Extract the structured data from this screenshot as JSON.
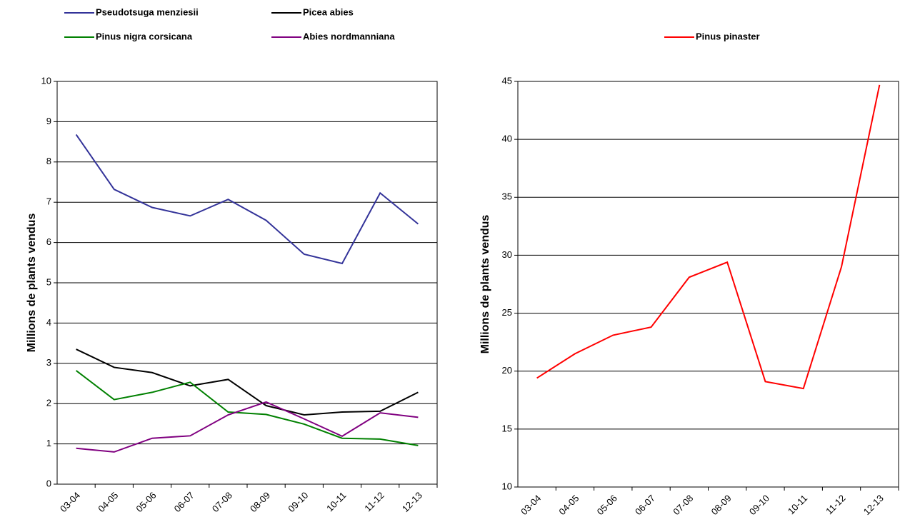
{
  "chart_data": [
    {
      "type": "line",
      "y_label": "Millions de plants vendus",
      "categories": [
        "03-04",
        "04-05",
        "05-06",
        "06-07",
        "07-08",
        "08-09",
        "09-10",
        "10-11",
        "11-12",
        "12-13"
      ],
      "series": [
        {
          "name": "Pseudotsuga menziesii",
          "color": "#333399",
          "values": [
            8.68,
            7.32,
            6.87,
            6.66,
            7.07,
            6.55,
            5.71,
            5.48,
            7.23,
            6.46
          ]
        },
        {
          "name": "Picea abies",
          "color": "#000000",
          "values": [
            3.35,
            2.9,
            2.77,
            2.44,
            2.6,
            1.95,
            1.72,
            1.79,
            1.81,
            2.28
          ]
        },
        {
          "name": "Pinus nigra corsicana",
          "color": "#008000",
          "values": [
            2.82,
            2.1,
            2.28,
            2.53,
            1.79,
            1.73,
            1.49,
            1.14,
            1.12,
            0.96
          ]
        },
        {
          "name": "Abies nordmanniana",
          "color": "#800080",
          "values": [
            0.89,
            0.8,
            1.14,
            1.2,
            1.72,
            2.04,
            1.62,
            1.19,
            1.77,
            1.66
          ]
        }
      ],
      "ylim": [
        0,
        10
      ],
      "yticks": [
        0,
        1,
        2,
        3,
        4,
        5,
        6,
        7,
        8,
        9,
        10
      ],
      "grid": true
    },
    {
      "type": "line",
      "y_label": "Millions de plants vendus",
      "categories": [
        "03-04",
        "04-05",
        "05-06",
        "06-07",
        "07-08",
        "08-09",
        "09-10",
        "10-11",
        "11-12",
        "12-13"
      ],
      "series": [
        {
          "name": "Pinus pinaster",
          "color": "#ff0000",
          "values": [
            19.4,
            21.5,
            23.1,
            23.8,
            28.1,
            29.4,
            19.1,
            18.5,
            29.0,
            44.7
          ]
        }
      ],
      "ylim": [
        10,
        45
      ],
      "yticks": [
        10,
        15,
        20,
        25,
        30,
        35,
        40,
        45
      ],
      "grid": true
    }
  ]
}
